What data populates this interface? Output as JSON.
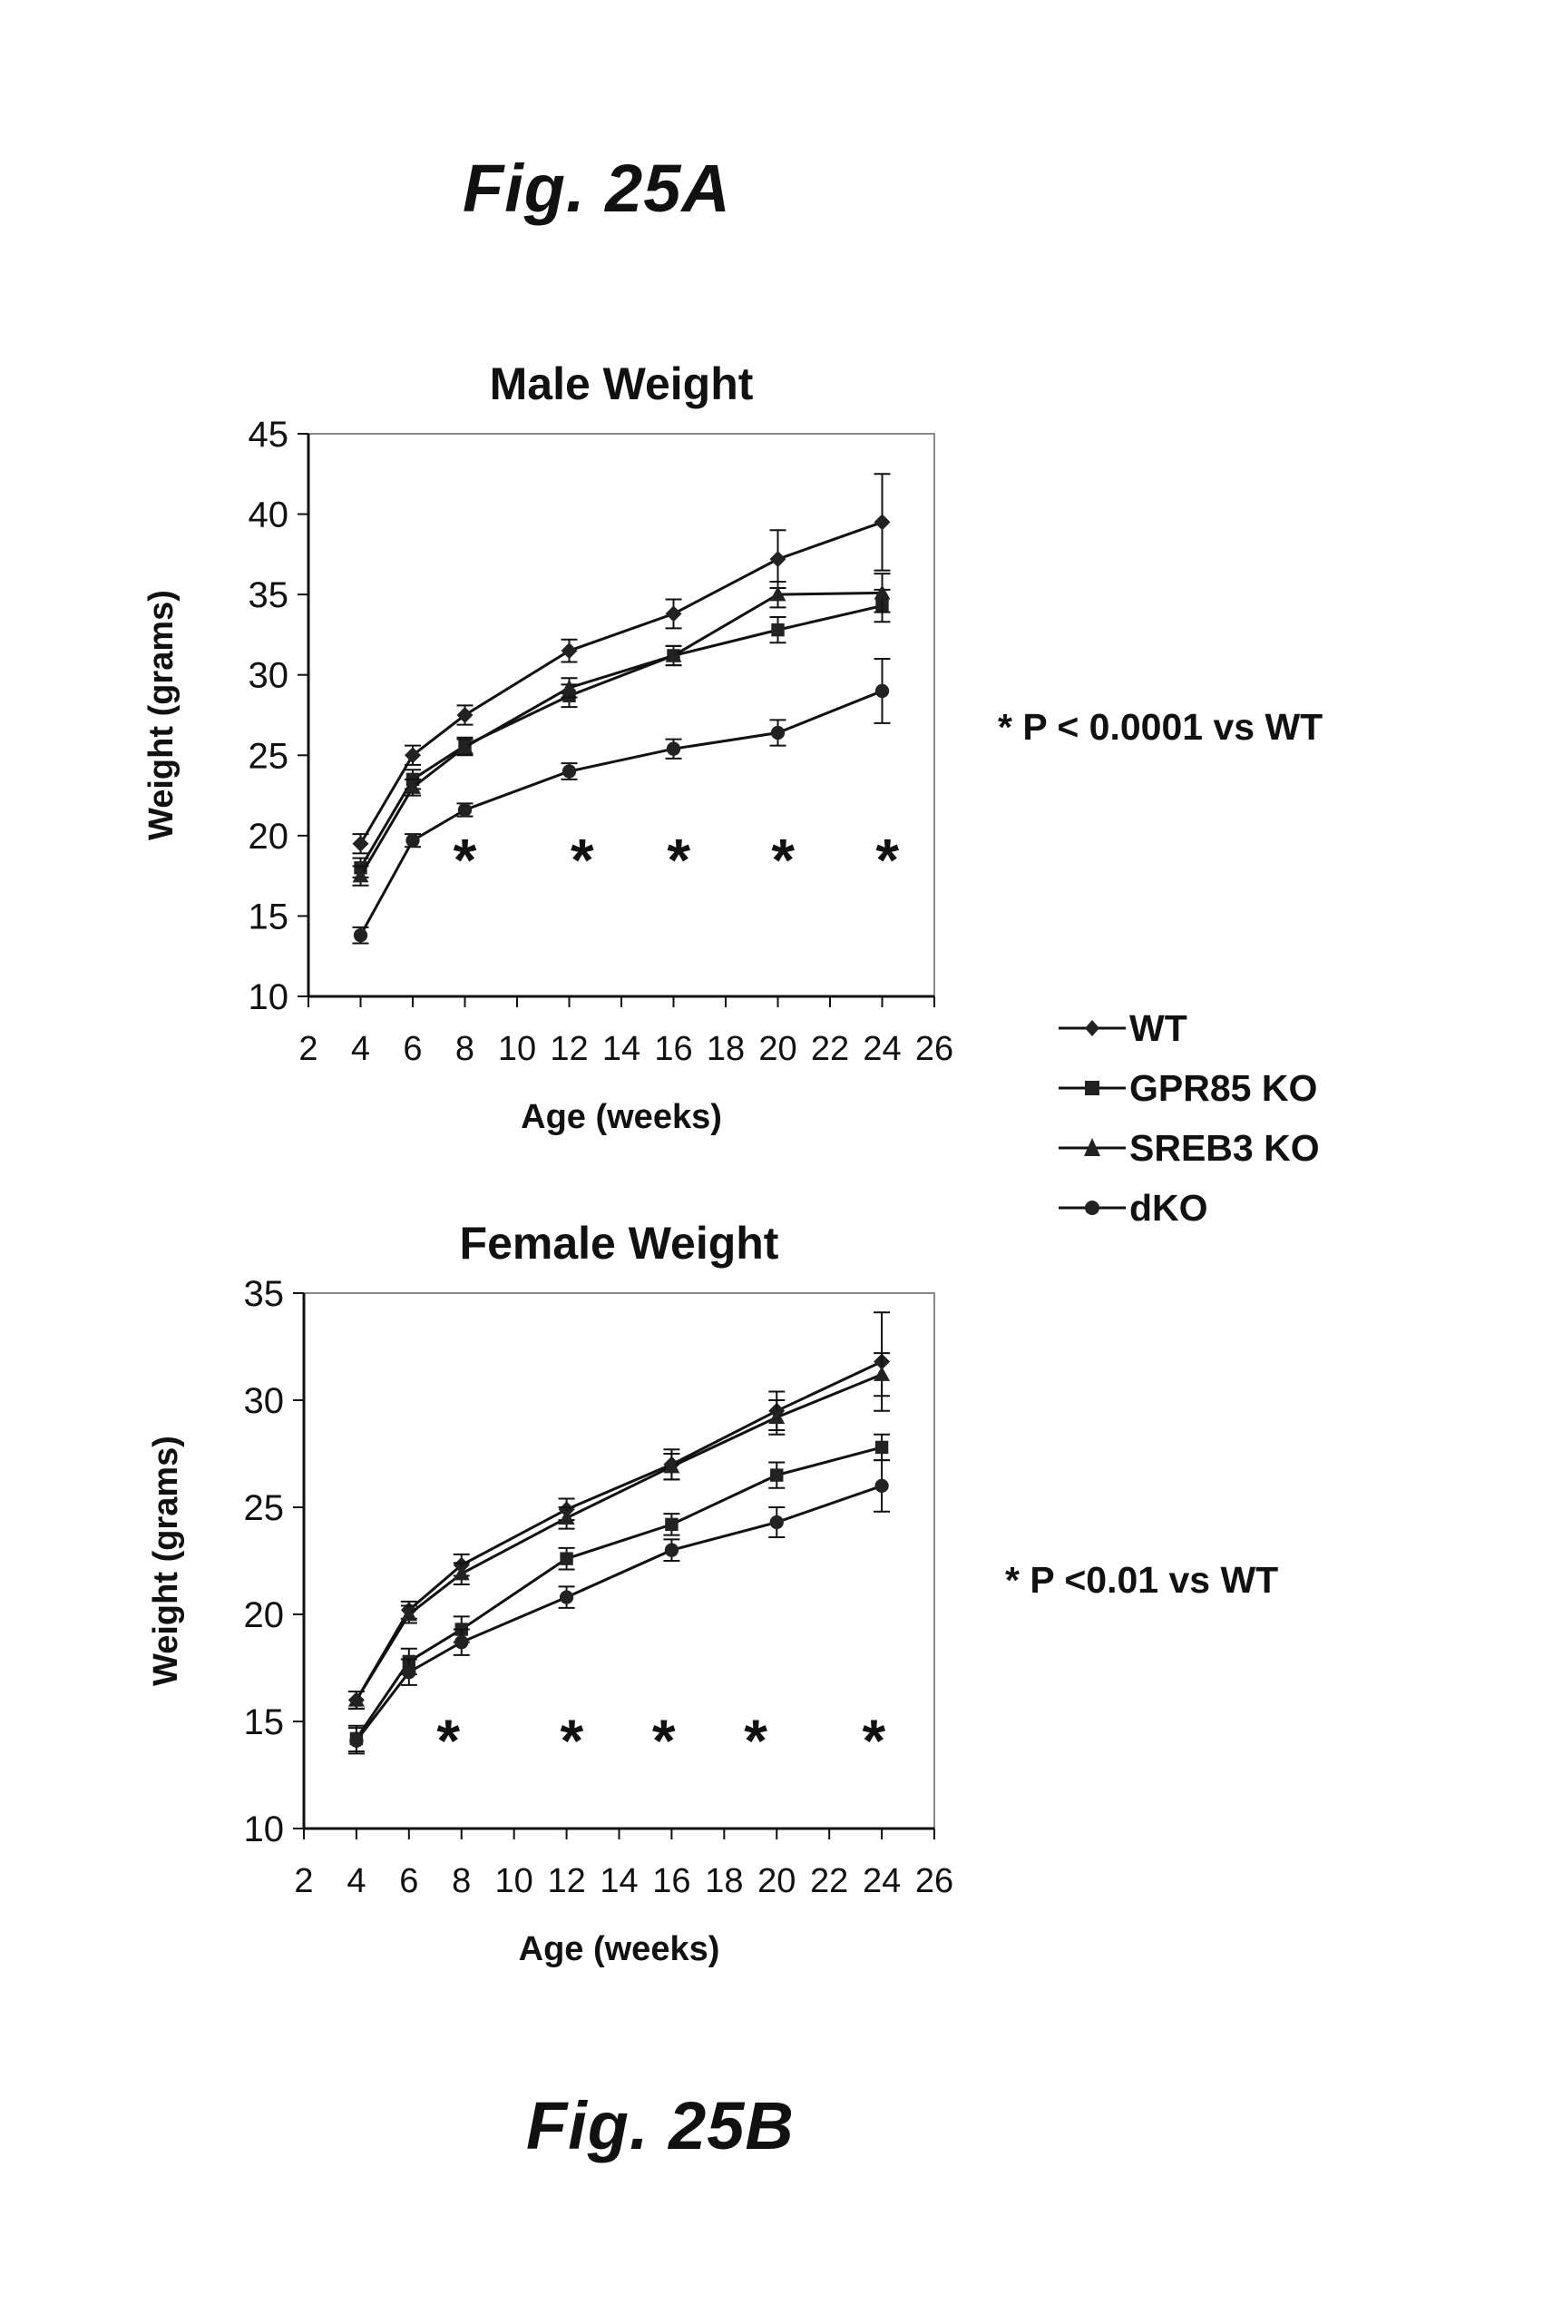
{
  "fig_a_caption": "Fig. 25A",
  "fig_b_caption": "Fig. 25B",
  "note_a": "* P < 0.0001 vs WT",
  "note_b": "* P <0.01 vs WT",
  "legend": [
    {
      "label": "WT",
      "marker": "diamond"
    },
    {
      "label": "GPR85 KO",
      "marker": "square"
    },
    {
      "label": "SREB3 KO",
      "marker": "triangle"
    },
    {
      "label": "dKO",
      "marker": "circle"
    }
  ],
  "chart_data": [
    {
      "type": "line",
      "title": "Male Weight",
      "xlabel": "Age (weeks)",
      "ylabel": "Weight (grams)",
      "xlim": [
        2,
        26
      ],
      "ylim": [
        10,
        45
      ],
      "x_ticks": [
        2,
        4,
        6,
        8,
        10,
        12,
        14,
        16,
        18,
        20,
        22,
        24,
        26
      ],
      "y_ticks": [
        10,
        15,
        20,
        25,
        30,
        35,
        40,
        45
      ],
      "x": [
        4,
        6,
        8,
        12,
        16,
        20,
        24
      ],
      "series": [
        {
          "name": "WT",
          "marker": "diamond",
          "values": [
            19.5,
            25.0,
            27.5,
            31.5,
            33.8,
            37.2,
            39.5
          ],
          "errors": [
            0.6,
            0.6,
            0.6,
            0.7,
            0.9,
            1.8,
            3.0
          ]
        },
        {
          "name": "GPR85 KO",
          "marker": "square",
          "values": [
            18.0,
            23.5,
            25.6,
            28.7,
            31.2,
            32.8,
            34.3
          ],
          "errors": [
            0.6,
            0.6,
            0.5,
            0.7,
            0.6,
            0.8,
            1.0
          ]
        },
        {
          "name": "SREB3 KO",
          "marker": "triangle",
          "values": [
            17.5,
            23.0,
            25.5,
            29.2,
            31.2,
            35.0,
            35.1
          ],
          "errors": [
            0.6,
            0.5,
            0.5,
            0.6,
            0.6,
            0.8,
            1.2
          ]
        },
        {
          "name": "dKO",
          "marker": "circle",
          "values": [
            13.8,
            19.7,
            21.6,
            24.0,
            25.4,
            26.4,
            29.0
          ],
          "errors": [
            0.5,
            0.4,
            0.4,
            0.5,
            0.6,
            0.8,
            2.0
          ]
        }
      ],
      "annotations": [
        {
          "text": "*",
          "x": 8,
          "y": 19.0
        },
        {
          "text": "*",
          "x": 12.5,
          "y": 19.0
        },
        {
          "text": "*",
          "x": 16.2,
          "y": 19.0
        },
        {
          "text": "*",
          "x": 20.2,
          "y": 19.0
        },
        {
          "text": "*",
          "x": 24.2,
          "y": 19.0
        }
      ]
    },
    {
      "type": "line",
      "title": "Female Weight",
      "xlabel": "Age (weeks)",
      "ylabel": "Weight (grams)",
      "xlim": [
        2,
        26
      ],
      "ylim": [
        10,
        35
      ],
      "x_ticks": [
        2,
        4,
        6,
        8,
        10,
        12,
        14,
        16,
        18,
        20,
        22,
        24,
        26
      ],
      "y_ticks": [
        10,
        15,
        20,
        25,
        30,
        35
      ],
      "x": [
        4,
        6,
        8,
        12,
        16,
        20,
        24
      ],
      "series": [
        {
          "name": "WT",
          "marker": "diamond",
          "values": [
            16.0,
            20.2,
            22.3,
            24.9,
            27.0,
            29.5,
            31.8
          ],
          "errors": [
            0.4,
            0.4,
            0.5,
            0.5,
            0.7,
            0.9,
            2.3
          ]
        },
        {
          "name": "GPR85 KO",
          "marker": "square",
          "values": [
            14.2,
            17.8,
            19.3,
            22.6,
            24.2,
            26.5,
            27.8
          ],
          "errors": [
            0.6,
            0.6,
            0.6,
            0.5,
            0.5,
            0.6,
            0.6
          ]
        },
        {
          "name": "SREB3 KO",
          "marker": "triangle",
          "values": [
            16.0,
            20.0,
            21.9,
            24.5,
            26.9,
            29.2,
            31.2
          ],
          "errors": [
            0.4,
            0.4,
            0.5,
            0.5,
            0.6,
            0.8,
            1.0
          ]
        },
        {
          "name": "dKO",
          "marker": "circle",
          "values": [
            14.1,
            17.3,
            18.7,
            20.8,
            23.0,
            24.3,
            26.0
          ],
          "errors": [
            0.6,
            0.6,
            0.6,
            0.5,
            0.5,
            0.7,
            1.2
          ]
        }
      ],
      "annotations": [
        {
          "text": "*",
          "x": 7.5,
          "y": 14.5
        },
        {
          "text": "*",
          "x": 12.2,
          "y": 14.5
        },
        {
          "text": "*",
          "x": 15.7,
          "y": 14.5
        },
        {
          "text": "*",
          "x": 19.2,
          "y": 14.5
        },
        {
          "text": "*",
          "x": 23.7,
          "y": 14.5
        }
      ]
    }
  ]
}
